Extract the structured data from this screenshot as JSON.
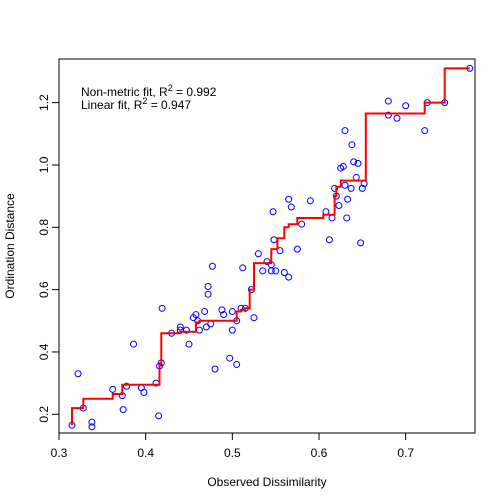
{
  "chart_data": {
    "type": "scatter",
    "xlabel": "Observed Dissimilarity",
    "ylabel": "Ordination Distance",
    "xlim": [
      0.3,
      0.78
    ],
    "ylim": [
      0.14,
      1.34
    ],
    "x_ticks": [
      0.3,
      0.4,
      0.5,
      0.6,
      0.7
    ],
    "x_tick_labels": [
      "0.3",
      "0.4",
      "0.5",
      "0.6",
      "0.7"
    ],
    "y_ticks": [
      0.2,
      0.4,
      0.6,
      0.8,
      1.0,
      1.2
    ],
    "y_tick_labels": [
      "0.2",
      "0.4",
      "0.6",
      "0.8",
      "1.0",
      "1.2"
    ],
    "annotations": [
      {
        "text": "Non-metric fit, R",
        "sup": "2",
        "value": " = 0.992"
      },
      {
        "text": "Linear fit, R",
        "sup": "2",
        "value": " = 0.947"
      }
    ],
    "colors": {
      "points": "#0000ff",
      "fit": "#ff0000"
    },
    "points": [
      [
        0.315,
        0.165
      ],
      [
        0.322,
        0.33
      ],
      [
        0.328,
        0.22
      ],
      [
        0.338,
        0.175
      ],
      [
        0.338,
        0.16
      ],
      [
        0.362,
        0.28
      ],
      [
        0.373,
        0.26
      ],
      [
        0.374,
        0.215
      ],
      [
        0.378,
        0.29
      ],
      [
        0.386,
        0.425
      ],
      [
        0.395,
        0.285
      ],
      [
        0.398,
        0.27
      ],
      [
        0.412,
        0.3
      ],
      [
        0.415,
        0.195
      ],
      [
        0.416,
        0.355
      ],
      [
        0.418,
        0.365
      ],
      [
        0.419,
        0.54
      ],
      [
        0.43,
        0.46
      ],
      [
        0.44,
        0.48
      ],
      [
        0.44,
        0.47
      ],
      [
        0.447,
        0.47
      ],
      [
        0.45,
        0.425
      ],
      [
        0.455,
        0.51
      ],
      [
        0.458,
        0.52
      ],
      [
        0.46,
        0.5
      ],
      [
        0.462,
        0.47
      ],
      [
        0.468,
        0.53
      ],
      [
        0.47,
        0.48
      ],
      [
        0.472,
        0.61
      ],
      [
        0.472,
        0.585
      ],
      [
        0.475,
        0.49
      ],
      [
        0.477,
        0.675
      ],
      [
        0.48,
        0.345
      ],
      [
        0.488,
        0.535
      ],
      [
        0.49,
        0.52
      ],
      [
        0.497,
        0.38
      ],
      [
        0.5,
        0.47
      ],
      [
        0.5,
        0.53
      ],
      [
        0.505,
        0.36
      ],
      [
        0.505,
        0.5
      ],
      [
        0.51,
        0.54
      ],
      [
        0.512,
        0.67
      ],
      [
        0.515,
        0.54
      ],
      [
        0.522,
        0.6
      ],
      [
        0.525,
        0.51
      ],
      [
        0.53,
        0.715
      ],
      [
        0.535,
        0.66
      ],
      [
        0.54,
        0.69
      ],
      [
        0.545,
        0.66
      ],
      [
        0.545,
        0.68
      ],
      [
        0.547,
        0.85
      ],
      [
        0.548,
        0.76
      ],
      [
        0.55,
        0.66
      ],
      [
        0.555,
        0.725
      ],
      [
        0.56,
        0.655
      ],
      [
        0.565,
        0.89
      ],
      [
        0.565,
        0.64
      ],
      [
        0.568,
        0.865
      ],
      [
        0.575,
        0.73
      ],
      [
        0.58,
        0.81
      ],
      [
        0.59,
        0.885
      ],
      [
        0.608,
        0.85
      ],
      [
        0.612,
        0.76
      ],
      [
        0.615,
        0.83
      ],
      [
        0.618,
        0.925
      ],
      [
        0.62,
        0.9
      ],
      [
        0.623,
        0.87
      ],
      [
        0.625,
        0.99
      ],
      [
        0.628,
        0.995
      ],
      [
        0.63,
        0.935
      ],
      [
        0.63,
        1.11
      ],
      [
        0.632,
        0.83
      ],
      [
        0.633,
        0.89
      ],
      [
        0.637,
        0.925
      ],
      [
        0.638,
        1.065
      ],
      [
        0.64,
        1.01
      ],
      [
        0.643,
        0.96
      ],
      [
        0.645,
        1.005
      ],
      [
        0.648,
        0.75
      ],
      [
        0.65,
        0.925
      ],
      [
        0.652,
        0.94
      ],
      [
        0.68,
        1.16
      ],
      [
        0.68,
        1.205
      ],
      [
        0.69,
        1.15
      ],
      [
        0.7,
        1.19
      ],
      [
        0.722,
        1.11
      ],
      [
        0.725,
        1.2
      ],
      [
        0.745,
        1.2
      ],
      [
        0.774,
        1.31
      ]
    ],
    "step_fit": [
      [
        0.315,
        0.165
      ],
      [
        0.315,
        0.22
      ],
      [
        0.328,
        0.22
      ],
      [
        0.328,
        0.25
      ],
      [
        0.338,
        0.25
      ],
      [
        0.338,
        0.25
      ],
      [
        0.362,
        0.25
      ],
      [
        0.362,
        0.265
      ],
      [
        0.373,
        0.265
      ],
      [
        0.373,
        0.295
      ],
      [
        0.416,
        0.295
      ],
      [
        0.416,
        0.36
      ],
      [
        0.418,
        0.36
      ],
      [
        0.418,
        0.46
      ],
      [
        0.44,
        0.46
      ],
      [
        0.44,
        0.465
      ],
      [
        0.458,
        0.465
      ],
      [
        0.458,
        0.495
      ],
      [
        0.462,
        0.495
      ],
      [
        0.462,
        0.5
      ],
      [
        0.505,
        0.5
      ],
      [
        0.505,
        0.53
      ],
      [
        0.51,
        0.53
      ],
      [
        0.51,
        0.535
      ],
      [
        0.515,
        0.535
      ],
      [
        0.515,
        0.54
      ],
      [
        0.52,
        0.54
      ],
      [
        0.52,
        0.6
      ],
      [
        0.525,
        0.6
      ],
      [
        0.525,
        0.685
      ],
      [
        0.545,
        0.685
      ],
      [
        0.545,
        0.73
      ],
      [
        0.552,
        0.73
      ],
      [
        0.552,
        0.765
      ],
      [
        0.56,
        0.765
      ],
      [
        0.56,
        0.8
      ],
      [
        0.565,
        0.8
      ],
      [
        0.565,
        0.81
      ],
      [
        0.575,
        0.81
      ],
      [
        0.575,
        0.83
      ],
      [
        0.605,
        0.83
      ],
      [
        0.605,
        0.84
      ],
      [
        0.618,
        0.84
      ],
      [
        0.618,
        0.9
      ],
      [
        0.62,
        0.9
      ],
      [
        0.62,
        0.93
      ],
      [
        0.625,
        0.93
      ],
      [
        0.625,
        0.95
      ],
      [
        0.654,
        0.95
      ],
      [
        0.654,
        1.165
      ],
      [
        0.722,
        1.165
      ],
      [
        0.722,
        1.2
      ],
      [
        0.745,
        1.2
      ],
      [
        0.745,
        1.31
      ],
      [
        0.774,
        1.31
      ]
    ]
  }
}
